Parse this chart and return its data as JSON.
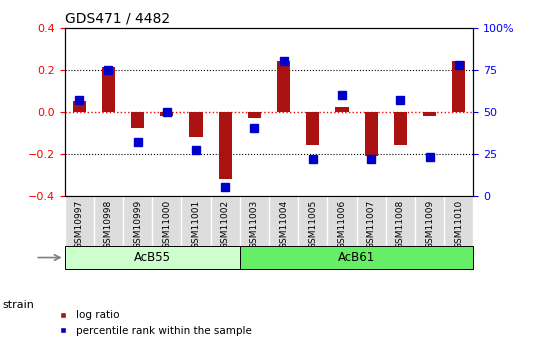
{
  "title": "GDS471 / 4482",
  "samples": [
    "GSM10997",
    "GSM10998",
    "GSM10999",
    "GSM11000",
    "GSM11001",
    "GSM11002",
    "GSM11003",
    "GSM11004",
    "GSM11005",
    "GSM11006",
    "GSM11007",
    "GSM11008",
    "GSM11009",
    "GSM11010"
  ],
  "log_ratio": [
    0.05,
    0.21,
    -0.08,
    -0.02,
    -0.12,
    -0.32,
    -0.03,
    0.24,
    -0.16,
    0.02,
    -0.21,
    -0.16,
    -0.02,
    0.24
  ],
  "percentile_rank": [
    57,
    75,
    32,
    50,
    27,
    5,
    40,
    80,
    22,
    60,
    22,
    57,
    23,
    78
  ],
  "strain_groups": [
    {
      "label": "AcB55",
      "start": 0,
      "end": 5,
      "color": "#ccffcc"
    },
    {
      "label": "AcB61",
      "start": 6,
      "end": 13,
      "color": "#66ee66"
    }
  ],
  "bar_color": "#aa1111",
  "marker_color": "#0000cc",
  "ylim": [
    -0.4,
    0.4
  ],
  "y2lim": [
    0,
    100
  ],
  "yticks": [
    -0.4,
    -0.2,
    0.0,
    0.2,
    0.4
  ],
  "y2ticks": [
    0,
    25,
    50,
    75,
    100
  ],
  "background_color": "#ffffff"
}
